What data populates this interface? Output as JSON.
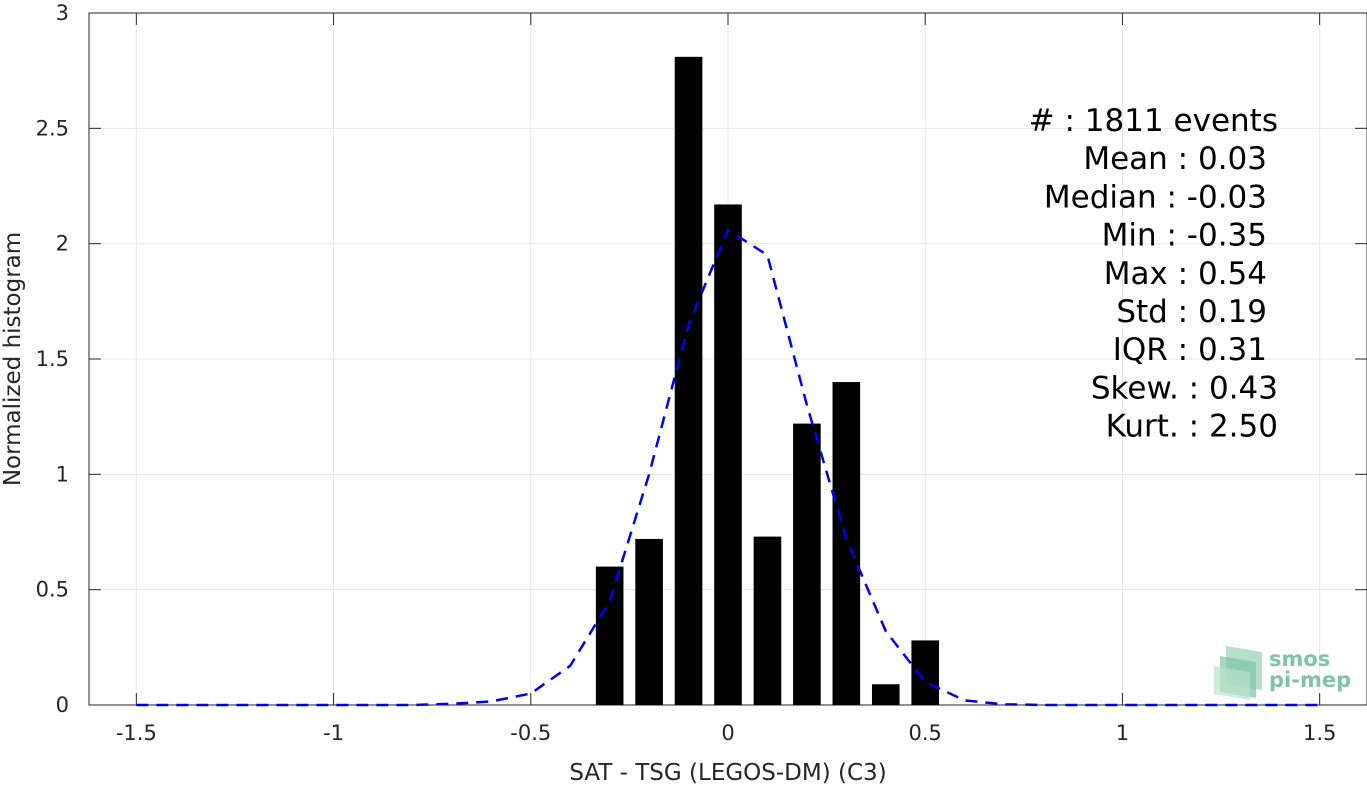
{
  "chart_data": {
    "type": "bar",
    "xlabel": "SAT - TSG (LEGOS-DM) (C3)",
    "ylabel": "Normalized histogram",
    "xlim": [
      -1.62,
      1.62
    ],
    "ylim": [
      0,
      3
    ],
    "grid": true,
    "xticks": [
      -1.5,
      -1,
      -0.5,
      0,
      0.5,
      1,
      1.5
    ],
    "xtick_labels": [
      "-1.5",
      "-1",
      "-0.5",
      "0",
      "0.5",
      "1",
      "1.5"
    ],
    "yticks": [
      0,
      0.5,
      1,
      1.5,
      2,
      2.5,
      3
    ],
    "ytick_labels": [
      "0",
      "0.5",
      "1",
      "1.5",
      "2",
      "2.5",
      "3"
    ],
    "bar_color": "#000000",
    "bar_width": 0.07,
    "bars": {
      "x": [
        -0.3,
        -0.2,
        -0.1,
        0.0,
        0.1,
        0.2,
        0.3,
        0.4,
        0.5
      ],
      "values": [
        0.6,
        0.72,
        2.81,
        2.17,
        0.73,
        1.22,
        1.4,
        0.09,
        0.28
      ]
    },
    "fit_curve": {
      "style": "dashed",
      "color": "#0000ee",
      "x": [
        -1.5,
        -1.4,
        -1.3,
        -1.2,
        -1.1,
        -1.0,
        -0.9,
        -0.8,
        -0.7,
        -0.6,
        -0.5,
        -0.4,
        -0.3,
        -0.2,
        -0.1,
        0.0,
        0.1,
        0.2,
        0.3,
        0.4,
        0.5,
        0.6,
        0.7,
        0.8,
        0.9,
        1.0,
        1.1,
        1.2,
        1.3,
        1.4,
        1.5
      ],
      "y": [
        0,
        0,
        0,
        0,
        0,
        0,
        0,
        0,
        0.005,
        0.015,
        0.05,
        0.17,
        0.45,
        1.0,
        1.65,
        2.06,
        1.95,
        1.3,
        0.72,
        0.32,
        0.1,
        0.02,
        0.003,
        0,
        0,
        0,
        0,
        0,
        0,
        0,
        0
      ]
    },
    "annotations": [
      "#  : 1811 events",
      "Mean : 0.03",
      "Median : -0.03",
      "Min : -0.35",
      "Max : 0.54",
      "Std : 0.19",
      "IQR : 0.31",
      "Skew. : 0.43",
      "Kurt. : 2.50"
    ]
  },
  "logo": {
    "line1": "smos",
    "line2": "pi-mep"
  }
}
